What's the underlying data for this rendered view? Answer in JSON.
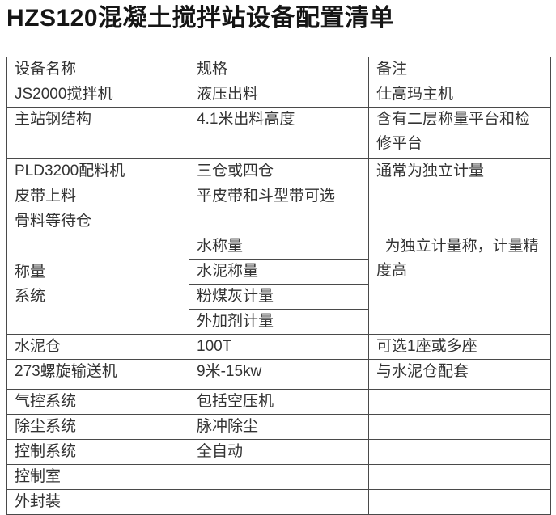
{
  "page": {
    "title": "HZS120混凝土搅拌站设备配置清单"
  },
  "colors": {
    "background": "#ffffff",
    "table_border": "#4a4a4a",
    "body_text": "#333333",
    "title_text": "#151515"
  },
  "table": {
    "headers": [
      "设备名称",
      "规格",
      "备注"
    ],
    "rows": [
      {
        "name": "JS2000搅拌机",
        "spec": "液压出料",
        "note": "仕高玛主机"
      },
      {
        "name": "主站钢结构",
        "spec": "4.1米出料高度",
        "note": "含有二层称量平台和检\n修平台"
      },
      {
        "name": "PLD3200配料机",
        "spec": "三仓或四仓",
        "note": "通常为独立计量"
      },
      {
        "name": "皮带上料",
        "spec": "平皮带和斗型带可选",
        "note": ""
      },
      {
        "name": "骨料等待仓",
        "spec": "",
        "note": ""
      },
      {
        "name": "水泥仓",
        "spec": "100T",
        "note": "可选1座或多座"
      },
      {
        "name": "273螺旋输送机",
        "spec": "9米-15kw",
        "note": "与水泥仓配套"
      },
      {
        "name": "气控系统",
        "spec": "包括空压机",
        "note": ""
      },
      {
        "name": "除尘系统",
        "spec": "脉冲除尘",
        "note": ""
      },
      {
        "name": "控制系统",
        "spec": "全自动",
        "note": ""
      },
      {
        "name": "控制室",
        "spec": "",
        "note": ""
      },
      {
        "name": "外封装",
        "spec": "",
        "note": ""
      }
    ],
    "weighing_group": {
      "name": "称量\n系统",
      "specs": [
        "水称量",
        "水泥称量",
        "粉煤灰计量",
        "外加剂计量"
      ],
      "note": "  为独立计量称，计量精\n度高"
    }
  }
}
